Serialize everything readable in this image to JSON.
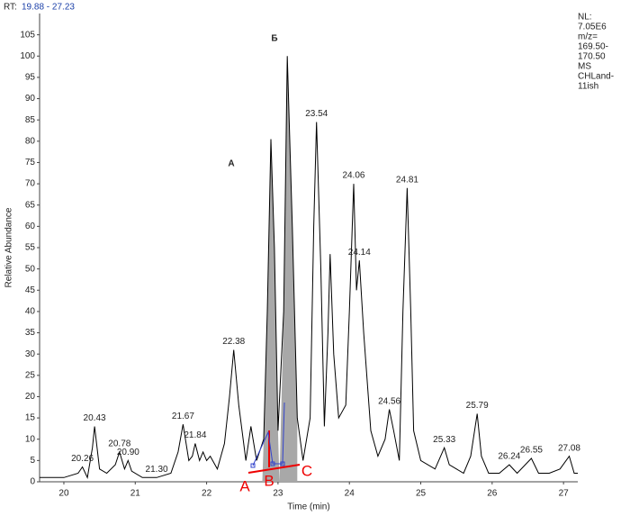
{
  "chart_data": {
    "type": "line",
    "rt_label": "RT:",
    "rt_range": "19.88 - 27.23",
    "info": [
      "NL:",
      "7.05E6",
      "m/z=",
      "169.50-",
      "170.50",
      "MS",
      "CHLand-",
      "11ish"
    ],
    "y_label": "Relative Abundance",
    "x_label": "Time (min)",
    "color": "#000000",
    "xlim": [
      19.66,
      27.2
    ],
    "ylim": [
      0,
      110
    ],
    "xticks": [
      20,
      21,
      22,
      23,
      24,
      25,
      26,
      27
    ],
    "yticks": [
      0,
      5,
      10,
      15,
      20,
      25,
      30,
      35,
      40,
      45,
      50,
      55,
      60,
      65,
      70,
      75,
      80,
      85,
      90,
      95,
      100,
      105
    ],
    "x": [
      19.66,
      20.0,
      20.2,
      20.26,
      20.33,
      20.4,
      20.43,
      20.5,
      20.6,
      20.72,
      20.78,
      20.85,
      20.9,
      20.95,
      21.1,
      21.3,
      21.5,
      21.6,
      21.67,
      21.75,
      21.8,
      21.84,
      21.9,
      21.95,
      22.0,
      22.05,
      22.15,
      22.25,
      22.32,
      22.38,
      22.45,
      22.55,
      22.62,
      22.7,
      22.8,
      22.85,
      22.9,
      22.95,
      23.0,
      23.08,
      23.13,
      23.2,
      23.27,
      23.35,
      23.45,
      23.5,
      23.54,
      23.6,
      23.65,
      23.7,
      23.73,
      23.78,
      23.85,
      23.95,
      24.0,
      24.06,
      24.1,
      24.14,
      24.2,
      24.3,
      24.4,
      24.5,
      24.56,
      24.62,
      24.7,
      24.75,
      24.81,
      24.86,
      24.9,
      25.0,
      25.2,
      25.33,
      25.4,
      25.5,
      25.6,
      25.7,
      25.79,
      25.85,
      25.95,
      26.1,
      26.24,
      26.35,
      26.55,
      26.65,
      26.8,
      26.95,
      27.08,
      27.15,
      27.2
    ],
    "values": [
      1,
      1,
      2,
      3.5,
      1,
      8,
      13,
      3,
      2,
      4,
      7,
      3,
      5,
      2.5,
      1,
      1,
      2,
      7,
      13.5,
      5,
      6,
      9,
      5,
      7,
      5,
      6,
      3,
      9,
      20,
      31,
      18,
      5,
      13,
      5,
      10,
      40,
      80.5,
      55,
      12,
      40,
      100,
      60,
      15,
      5,
      15,
      60,
      84.5,
      50,
      13,
      35,
      53.5,
      30,
      15,
      18,
      40,
      70,
      45,
      52,
      35,
      12,
      6,
      10,
      17,
      12,
      5,
      40,
      69,
      40,
      12,
      5,
      3,
      8,
      4,
      3,
      2,
      6,
      16,
      6,
      2,
      2,
      4,
      2,
      5.5,
      2,
      2,
      3,
      6,
      2,
      2
    ],
    "peaks": [
      {
        "x": 20.26,
        "y": 3.5
      },
      {
        "x": 20.43,
        "y": 13
      },
      {
        "x": 20.78,
        "y": 7
      },
      {
        "x": {
          "value": 20.9,
          "label": "20.90"
        },
        "y": 5
      },
      {
        "x": {
          "value": 21.3,
          "label": "21.30"
        },
        "y": 1
      },
      {
        "x": 21.67,
        "y": 13.5
      },
      {
        "x": 21.84,
        "y": 9
      },
      {
        "x": 22.38,
        "y": 31
      },
      {
        "x": 23.54,
        "y": 84.5
      },
      {
        "x": 24.06,
        "y": 70
      },
      {
        "x": 24.14,
        "y": 52
      },
      {
        "x": 24.56,
        "y": 17
      },
      {
        "x": 24.81,
        "y": 69
      },
      {
        "x": 25.33,
        "y": 8
      },
      {
        "x": 25.79,
        "y": 16
      },
      {
        "x": 26.24,
        "y": 4
      },
      {
        "x": 26.55,
        "y": 5.5
      },
      {
        "x": 27.08,
        "y": 6
      }
    ],
    "peak_names": [
      "А",
      "Б"
    ],
    "points": [
      "A",
      "B",
      "C"
    ]
  }
}
